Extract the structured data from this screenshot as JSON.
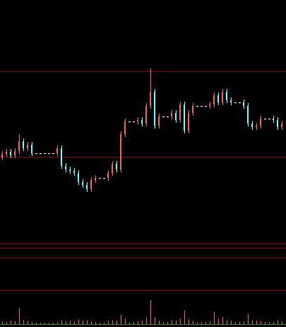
{
  "chart_data": [
    {
      "type": "candlestick",
      "open": [
        122,
        127,
        130,
        125,
        131,
        145,
        135,
        140,
        128,
        128,
        128,
        128,
        128,
        128,
        135,
        110,
        105,
        103,
        100,
        87,
        83,
        77,
        90,
        93,
        93,
        93,
        100,
        113,
        105,
        155,
        173,
        173,
        173,
        175,
        170,
        195,
        215,
        167,
        180,
        180,
        180,
        185,
        175,
        197,
        160,
        185,
        195,
        195,
        195,
        195,
        197,
        210,
        200,
        215,
        203,
        200,
        200,
        200,
        195,
        170,
        165,
        167,
        177,
        177,
        177,
        175,
        165
      ],
      "high": [
        131,
        134,
        134,
        135,
        155,
        149,
        144,
        144,
        128,
        128,
        128,
        128,
        128,
        139,
        139,
        114,
        109,
        107,
        104,
        91,
        87,
        94,
        97,
        93,
        93,
        104,
        117,
        117,
        159,
        177,
        173,
        173,
        179,
        179,
        199,
        248,
        219,
        184,
        180,
        180,
        189,
        189,
        201,
        201,
        189,
        199,
        195,
        195,
        195,
        201,
        214,
        214,
        219,
        219,
        207,
        200,
        200,
        204,
        199,
        174,
        171,
        181,
        177,
        177,
        181,
        179,
        174
      ],
      "low": [
        118,
        123,
        121,
        121,
        127,
        131,
        131,
        124,
        128,
        128,
        128,
        128,
        128,
        124,
        106,
        101,
        99,
        96,
        83,
        79,
        73,
        73,
        86,
        93,
        93,
        89,
        96,
        101,
        101,
        151,
        173,
        173,
        169,
        166,
        166,
        191,
        163,
        163,
        180,
        180,
        176,
        171,
        171,
        156,
        156,
        181,
        195,
        195,
        195,
        191,
        193,
        196,
        196,
        199,
        196,
        200,
        200,
        191,
        166,
        161,
        161,
        163,
        177,
        177,
        171,
        161,
        161
      ],
      "close": [
        127,
        130,
        125,
        131,
        145,
        135,
        140,
        128,
        128,
        128,
        128,
        128,
        128,
        135,
        110,
        105,
        103,
        100,
        87,
        83,
        77,
        90,
        93,
        93,
        93,
        100,
        113,
        105,
        155,
        173,
        173,
        173,
        175,
        170,
        195,
        215,
        167,
        180,
        180,
        180,
        185,
        175,
        197,
        160,
        185,
        195,
        195,
        195,
        195,
        197,
        210,
        200,
        215,
        203,
        200,
        200,
        200,
        195,
        170,
        165,
        167,
        177,
        177,
        177,
        175,
        165,
        170
      ],
      "up_color": "#ff5a5a",
      "down_color": "#54ffff",
      "flat_color": "#ffffff",
      "ylim": [
        0,
        345
      ]
    },
    {
      "type": "bar",
      "values": [
        4,
        3,
        5,
        4,
        23,
        6,
        5,
        3,
        2,
        2,
        2,
        2,
        2,
        3,
        6,
        4,
        5,
        4,
        7,
        5,
        6,
        4,
        3,
        2,
        2,
        5,
        6,
        5,
        14,
        8,
        3,
        3,
        4,
        5,
        9,
        35,
        10,
        5,
        3,
        3,
        6,
        5,
        8,
        20,
        7,
        5,
        3,
        3,
        3,
        4,
        18,
        8,
        10,
        6,
        5,
        3,
        3,
        4,
        15,
        6,
        5,
        4,
        3,
        3,
        3,
        6,
        4
      ],
      "color": "#ff5a5a",
      "ylim": [
        0,
        40
      ]
    }
  ]
}
